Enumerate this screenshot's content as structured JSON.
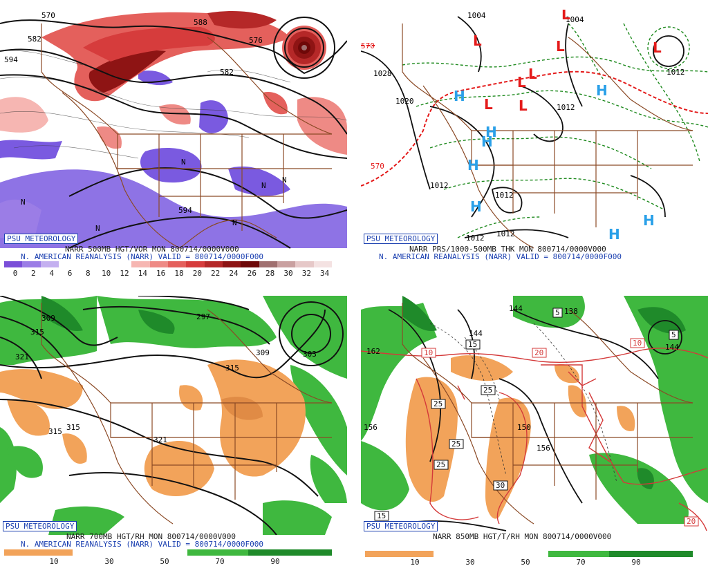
{
  "panels": {
    "p1": {
      "badge": "PSU METEOROLOGY",
      "line1": "NARR 500MB HGT/VOR MON 800714/0000V000",
      "line2": "N. AMERICAN REANALYSIS (NARR) VALID = 800714/0000F000",
      "contours": [
        "570",
        "582",
        "594",
        "576",
        "582",
        "588",
        "594"
      ],
      "scale_labels": [
        "0",
        "2",
        "4",
        "6",
        "8",
        "10",
        "12",
        "14",
        "16",
        "18",
        "20",
        "22",
        "24",
        "26",
        "28",
        "30",
        "32",
        "34"
      ],
      "scale_colors": [
        "#7a4ed8",
        "#9b7de6",
        "#c4b0f0",
        "#ffffff",
        "#ffffff",
        "#ffffff",
        "#ffffff",
        "#f6b6b2",
        "#ee8a85",
        "#e4605c",
        "#d63c3c",
        "#b52828",
        "#8e1414",
        "#6e0808",
        "#a07070",
        "#c9a0a0",
        "#e6c8c8",
        "#f4e2e2"
      ],
      "markers": [
        "N",
        "N",
        "N",
        "N",
        "N",
        "N"
      ]
    },
    "p2": {
      "badge": "PSU METEOROLOGY",
      "line1": "NARR PRS/1000-500MB THK MON 800714/0000V000",
      "line2": "N. AMERICAN REANALYSIS (NARR) VALID = 800714/0000F000",
      "contours": [
        "1004",
        "1004",
        "1028",
        "1020",
        "1012",
        "1012",
        "1012",
        "1012",
        "1012",
        "1012",
        "570",
        "570"
      ],
      "lows": [
        "L",
        "L",
        "L",
        "L",
        "L",
        "L",
        "L",
        "L"
      ],
      "highs": [
        "H",
        "H",
        "H",
        "H",
        "H",
        "H",
        "H",
        "H"
      ]
    },
    "p3": {
      "badge": "PSU METEOROLOGY",
      "line1": "NARR 700MB HGT/RH MON 800714/0000V000",
      "line2": "N. AMERICAN REANALYSIS (NARR) VALID = 800714/0000F000",
      "contours": [
        "309",
        "315",
        "321",
        "297",
        "309",
        "303",
        "315",
        "315",
        "315",
        "321"
      ],
      "scale_labels": [
        "10",
        "30",
        "50",
        "70",
        "90"
      ]
    },
    "p4": {
      "badge": "PSU METEOROLOGY",
      "line1": "NARR 850MB HGT/T/RH MON 800714/0000V000",
      "contours": [
        "144",
        "138",
        "144",
        "162",
        "156",
        "150",
        "156",
        "144"
      ],
      "boxes": [
        "5",
        "5",
        "10",
        "10",
        "15",
        "20",
        "25",
        "25",
        "25",
        "25",
        "30",
        "15",
        "20"
      ],
      "scale_labels": [
        "10",
        "30",
        "50",
        "70",
        "90"
      ]
    }
  },
  "colors": {
    "purple": "#7a5ae0",
    "red_shade": "#e4605c",
    "dark_red": "#8e1414",
    "green": "#3fb83f",
    "dark_green": "#1f8a2a",
    "tan": "#f2a35a",
    "map_lines": "#8b4a26",
    "low_red": "#e41a1a",
    "high_blue": "#2aa0e8",
    "dashed_green": "#1e8a1e",
    "dashed_red": "#e41a1a",
    "frame_blue": "#1a3fb0"
  }
}
